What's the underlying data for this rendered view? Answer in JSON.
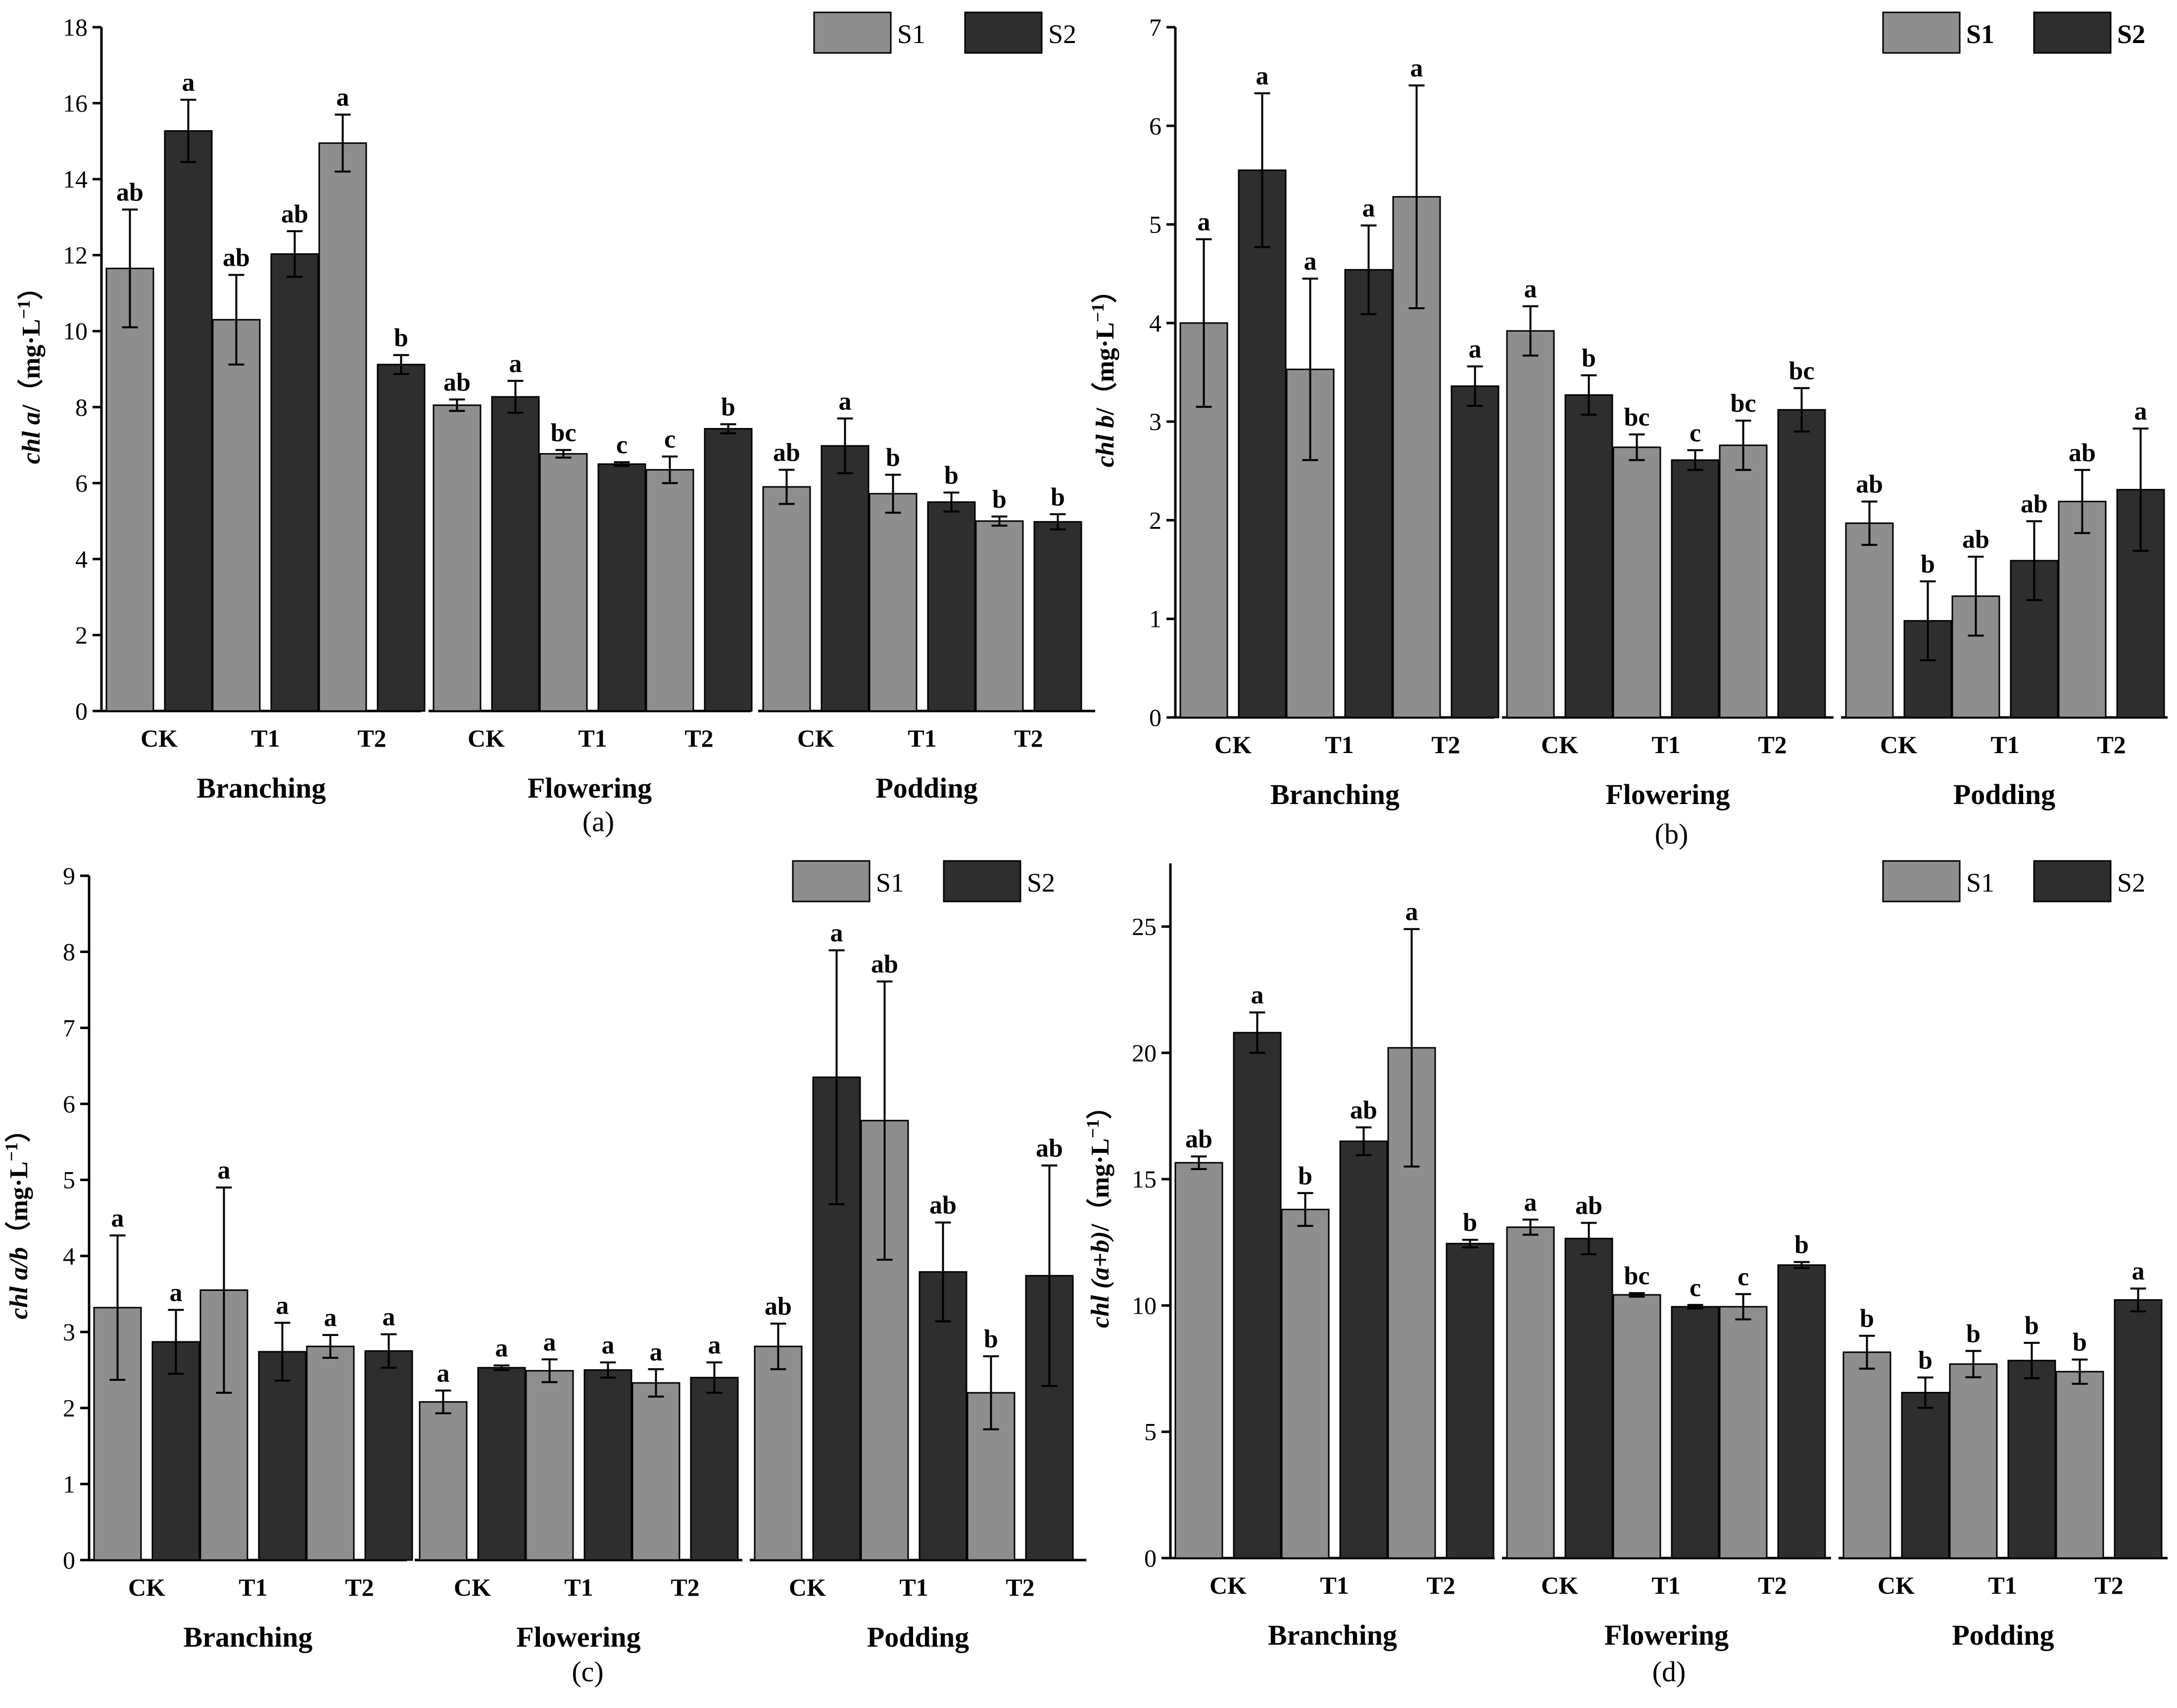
{
  "colors": {
    "S1": "#8e8e8e",
    "S2": "#2e2e2e",
    "axis": "#000000"
  },
  "chart_data": [
    {
      "id": "a",
      "type": "bar",
      "subtitle": "(a)",
      "ylabel_italic": "chl a",
      "ylabel_rest": "/（mg·L",
      "ylabel_exp": "−1",
      "ylabel_close": "）",
      "ylim": [
        0,
        18
      ],
      "yticks": [
        0,
        2,
        4,
        6,
        8,
        10,
        12,
        14,
        16,
        18
      ],
      "legend_bold": false,
      "groups": [
        "Branching",
        "Flowering",
        "Podding"
      ],
      "categories": [
        "CK",
        "T1",
        "T2"
      ],
      "series": [
        {
          "name": "S1",
          "values": [
            [
              11.65,
              10.3,
              14.95
            ],
            [
              8.05,
              6.77,
              6.35
            ],
            [
              5.9,
              5.72,
              5.0
            ]
          ],
          "errors": [
            [
              1.55,
              1.18,
              0.75
            ],
            [
              0.15,
              0.1,
              0.35
            ],
            [
              0.45,
              0.5,
              0.12
            ]
          ],
          "labels": [
            [
              "ab",
              "ab",
              "a"
            ],
            [
              "ab",
              "bc",
              "c"
            ],
            [
              "ab",
              "b",
              "b"
            ]
          ]
        },
        {
          "name": "S2",
          "values": [
            [
              15.27,
              12.03,
              9.12
            ],
            [
              8.27,
              6.5,
              7.43
            ],
            [
              6.98,
              5.5,
              4.98
            ]
          ],
          "errors": [
            [
              0.82,
              0.6,
              0.25
            ],
            [
              0.42,
              0.05,
              0.12
            ],
            [
              0.72,
              0.25,
              0.2
            ]
          ],
          "labels": [
            [
              "a",
              "ab",
              "b"
            ],
            [
              "a",
              "c",
              "b"
            ],
            [
              "a",
              "b",
              "b"
            ]
          ]
        }
      ]
    },
    {
      "id": "b",
      "type": "bar",
      "subtitle": "(b)",
      "ylabel_italic": "chl b",
      "ylabel_rest": "/（mg·L",
      "ylabel_exp": "−1",
      "ylabel_close": "）",
      "ylim": [
        0,
        7
      ],
      "yticks": [
        0,
        1,
        2,
        3,
        4,
        5,
        6,
        7
      ],
      "legend_bold": true,
      "groups": [
        "Branching",
        "Flowering",
        "Podding"
      ],
      "categories": [
        "CK",
        "T1",
        "T2"
      ],
      "series": [
        {
          "name": "S1",
          "values": [
            [
              4.0,
              3.53,
              5.28
            ],
            [
              3.92,
              2.74,
              2.76
            ],
            [
              1.97,
              1.23,
              2.19
            ]
          ],
          "errors": [
            [
              0.85,
              0.92,
              1.13
            ],
            [
              0.25,
              0.13,
              0.25
            ],
            [
              0.22,
              0.4,
              0.32
            ]
          ],
          "labels": [
            [
              "a",
              "a",
              "a"
            ],
            [
              "a",
              "bc",
              "bc"
            ],
            [
              "ab",
              "ab",
              "ab"
            ]
          ]
        },
        {
          "name": "S2",
          "values": [
            [
              5.55,
              4.54,
              3.36
            ],
            [
              3.27,
              2.61,
              3.12
            ],
            [
              0.98,
              1.59,
              2.31
            ]
          ],
          "errors": [
            [
              0.78,
              0.45,
              0.2
            ],
            [
              0.2,
              0.1,
              0.22
            ],
            [
              0.4,
              0.4,
              0.62
            ]
          ],
          "labels": [
            [
              "a",
              "a",
              "a"
            ],
            [
              "b",
              "c",
              "bc"
            ],
            [
              "b",
              "ab",
              "a"
            ]
          ]
        }
      ]
    },
    {
      "id": "c",
      "type": "bar",
      "subtitle": "(c)",
      "ylabel_italic": "chl a/b",
      "ylabel_rest": "（mg·L",
      "ylabel_exp": "−1",
      "ylabel_close": "）",
      "ylim": [
        0,
        9
      ],
      "yticks": [
        0,
        1,
        2,
        3,
        4,
        5,
        6,
        7,
        8,
        9
      ],
      "legend_bold": false,
      "groups": [
        "Branching",
        "Flowering",
        "Podding"
      ],
      "categories": [
        "CK",
        "T1",
        "T2"
      ],
      "series": [
        {
          "name": "S1",
          "values": [
            [
              3.32,
              3.55,
              2.81
            ],
            [
              2.08,
              2.49,
              2.33
            ],
            [
              2.81,
              5.78,
              2.2
            ]
          ],
          "errors": [
            [
              0.95,
              1.35,
              0.15
            ],
            [
              0.15,
              0.15,
              0.18
            ],
            [
              0.3,
              1.83,
              0.48
            ]
          ],
          "labels": [
            [
              "a",
              "a",
              "a"
            ],
            [
              "a",
              "a",
              "a"
            ],
            [
              "ab",
              "ab",
              "b"
            ]
          ]
        },
        {
          "name": "S2",
          "values": [
            [
              2.87,
              2.74,
              2.75
            ],
            [
              2.53,
              2.5,
              2.4
            ],
            [
              6.35,
              3.79,
              3.74
            ]
          ],
          "errors": [
            [
              0.42,
              0.38,
              0.22
            ],
            [
              0.03,
              0.1,
              0.2
            ],
            [
              1.67,
              0.65,
              1.45
            ]
          ],
          "labels": [
            [
              "a",
              "a",
              "a"
            ],
            [
              "a",
              "a",
              "a"
            ],
            [
              "a",
              "ab",
              "ab"
            ]
          ]
        }
      ]
    },
    {
      "id": "d",
      "type": "bar",
      "subtitle": "(d)",
      "ylabel_italic": "chl (a+b)",
      "ylabel_rest": "/（mg·L",
      "ylabel_exp": "−1",
      "ylabel_close": "）",
      "ylim": [
        0,
        27.5
      ],
      "yticks": [
        0,
        5,
        10,
        15,
        20,
        25
      ],
      "legend_bold": false,
      "groups": [
        "Branching",
        "Flowering",
        "Podding"
      ],
      "categories": [
        "CK",
        "T1",
        "T2"
      ],
      "series": [
        {
          "name": "S1",
          "values": [
            [
              15.65,
              13.8,
              20.2
            ],
            [
              13.1,
              10.42,
              9.95
            ],
            [
              8.15,
              7.68,
              7.38
            ]
          ],
          "errors": [
            [
              0.25,
              0.65,
              4.7
            ],
            [
              0.3,
              0.07,
              0.5
            ],
            [
              0.65,
              0.52,
              0.48
            ]
          ],
          "labels": [
            [
              "ab",
              "b",
              "a"
            ],
            [
              "a",
              "bc",
              "c"
            ],
            [
              "b",
              "b",
              "b"
            ]
          ]
        },
        {
          "name": "S2",
          "values": [
            [
              20.8,
              16.5,
              12.45
            ],
            [
              12.65,
              9.95,
              11.6
            ],
            [
              6.55,
              7.82,
              10.22
            ]
          ],
          "errors": [
            [
              0.8,
              0.55,
              0.15
            ],
            [
              0.62,
              0.07,
              0.12
            ],
            [
              0.6,
              0.7,
              0.45
            ]
          ],
          "labels": [
            [
              "a",
              "ab",
              "b"
            ],
            [
              "ab",
              "c",
              "b"
            ],
            [
              "b",
              "b",
              "a"
            ]
          ]
        }
      ]
    }
  ]
}
